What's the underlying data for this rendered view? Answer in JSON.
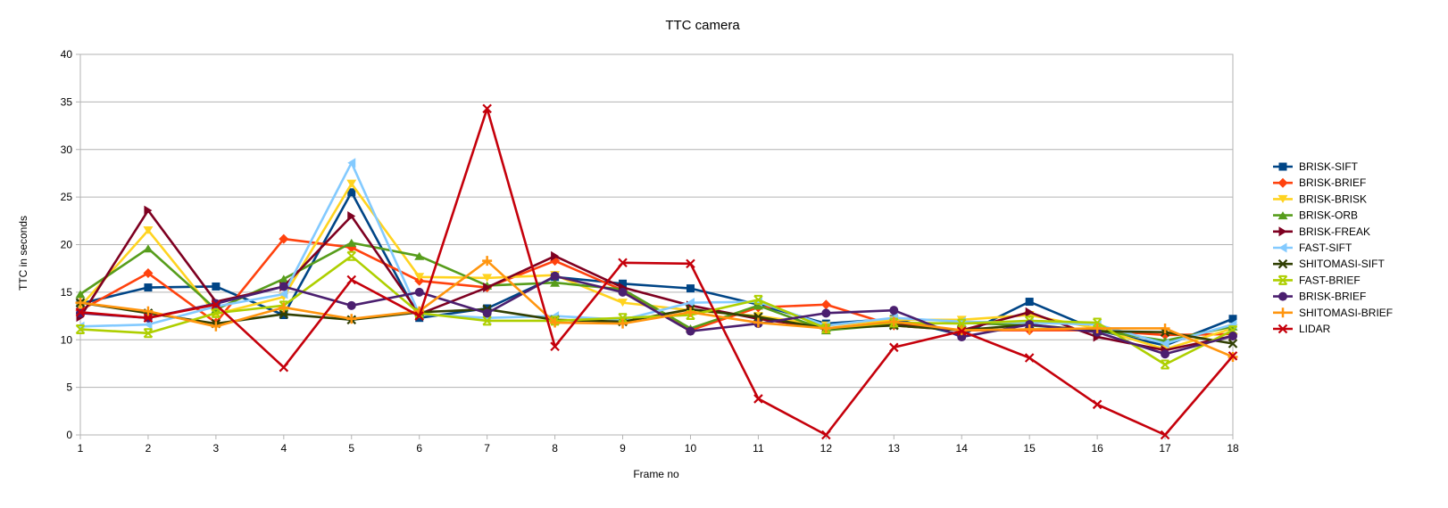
{
  "chart_data": {
    "type": "line",
    "title": "TTC camera",
    "xlabel": "Frame no",
    "ylabel": "TTC in seconds",
    "ylim": [
      0,
      40
    ],
    "yticks": [
      0,
      5,
      10,
      15,
      20,
      25,
      30,
      35,
      40
    ],
    "grid": true,
    "legend_position": "right",
    "x": [
      1,
      2,
      3,
      4,
      5,
      6,
      7,
      8,
      9,
      10,
      11,
      12,
      13,
      14,
      15,
      16,
      17,
      18
    ],
    "series": [
      {
        "name": "BRISK-SIFT",
        "color": "#004586",
        "marker": "square",
        "values": [
          13.8,
          15.5,
          15.6,
          12.6,
          25.5,
          12.3,
          13.3,
          16.6,
          15.9,
          15.4,
          13.7,
          11.7,
          12.2,
          10.5,
          14.0,
          11.0,
          9.4,
          12.2
        ]
      },
      {
        "name": "BRISK-BRIEF",
        "color": "#ff420e",
        "marker": "diamond",
        "values": [
          13.1,
          17.0,
          11.8,
          20.6,
          19.7,
          16.2,
          15.5,
          18.3,
          15.2,
          11.0,
          13.4,
          13.7,
          11.5,
          11.0,
          11.0,
          11.0,
          10.5,
          10.6
        ]
      },
      {
        "name": "BRISK-BRISK",
        "color": "#ffd320",
        "marker": "triangle-down",
        "values": [
          13.5,
          21.5,
          12.7,
          14.5,
          26.4,
          16.6,
          16.5,
          16.8,
          13.9,
          13.1,
          12.5,
          11.5,
          12.1,
          12.1,
          12.6,
          11.2,
          9.0,
          11.2
        ]
      },
      {
        "name": "BRISK-ORB",
        "color": "#579d1c",
        "marker": "triangle-up",
        "values": [
          14.8,
          19.6,
          13.2,
          16.4,
          20.2,
          18.8,
          15.7,
          16.0,
          15.3,
          11.2,
          13.6,
          11.0,
          11.6,
          11.8,
          11.5,
          11.0,
          9.9,
          11.4
        ]
      },
      {
        "name": "BRISK-FREAK",
        "color": "#7e0021",
        "marker": "triangle-right",
        "values": [
          12.4,
          23.6,
          14.0,
          15.6,
          23.0,
          12.7,
          15.5,
          18.8,
          15.5,
          13.6,
          12.2,
          11.2,
          11.6,
          11.0,
          12.9,
          10.3,
          8.9,
          10.4
        ]
      },
      {
        "name": "FAST-SIFT",
        "color": "#83caff",
        "marker": "triangle-left",
        "values": [
          11.4,
          11.6,
          13.5,
          14.8,
          28.6,
          12.7,
          12.3,
          12.5,
          12.1,
          13.9,
          14.0,
          11.5,
          12.3,
          11.9,
          11.8,
          11.6,
          9.6,
          11.6
        ]
      },
      {
        "name": "SHITOMASI-SIFT",
        "color": "#314004",
        "marker": "x",
        "values": [
          13.9,
          12.8,
          11.7,
          12.7,
          12.1,
          12.9,
          13.2,
          12.1,
          11.9,
          13.2,
          12.4,
          11.2,
          11.5,
          11.0,
          11.6,
          10.9,
          10.8,
          9.6
        ]
      },
      {
        "name": "FAST-BRIEF",
        "color": "#aecf00",
        "marker": "x-bar",
        "values": [
          11.1,
          10.7,
          12.8,
          13.6,
          18.8,
          12.8,
          12.0,
          12.0,
          12.3,
          12.6,
          14.2,
          11.2,
          11.8,
          11.7,
          12.0,
          11.8,
          7.4,
          11.0
        ]
      },
      {
        "name": "BRISK-BRIEF",
        "color": "#4b1f6f",
        "marker": "circle",
        "values": [
          12.8,
          12.3,
          13.8,
          15.6,
          13.6,
          15.0,
          12.8,
          16.7,
          15.0,
          10.9,
          11.7,
          12.8,
          13.1,
          10.3,
          11.6,
          10.8,
          8.5,
          10.4
        ]
      },
      {
        "name": "SHITOMASI-BRIEF",
        "color": "#ff950e",
        "marker": "plus",
        "values": [
          13.9,
          13.0,
          11.4,
          13.4,
          12.2,
          13.0,
          18.3,
          11.8,
          11.7,
          12.9,
          11.8,
          11.2,
          11.9,
          11.0,
          11.1,
          11.2,
          11.2,
          8.2
        ]
      },
      {
        "name": "LIDAR",
        "color": "#c5000b",
        "marker": "x",
        "values": [
          12.9,
          12.3,
          13.7,
          7.1,
          16.3,
          12.5,
          34.3,
          9.3,
          18.1,
          18.0,
          3.8,
          0.0,
          9.2,
          10.9,
          8.1,
          3.2,
          0.0,
          8.3
        ]
      }
    ]
  }
}
